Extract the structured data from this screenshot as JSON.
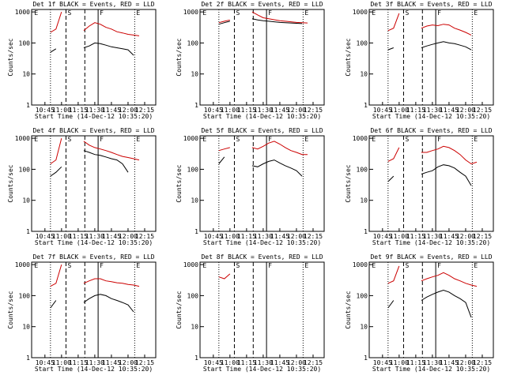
{
  "chart_data": [
    {
      "type": "line",
      "title": "Det 1f BLACK = Events, RED = LLD",
      "xlabel": "Start Time (14-Dec-12 10:35:20)",
      "ylabel": "Counts/sec",
      "log": true,
      "x": [
        "10:50",
        "10:55",
        "11:00",
        "11:05",
        "11:10",
        "11:15",
        "11:20",
        "11:25",
        "11:30",
        "11:35",
        "11:40",
        "11:45",
        "11:50",
        "11:55",
        "12:00",
        "12:05",
        "12:10"
      ],
      "xlim": [
        "10:33",
        "12:25"
      ],
      "xticks": [
        "10:45",
        "11:00",
        "11:15",
        "11:30",
        "11:45",
        "12:00",
        "12:15"
      ],
      "ylim": [
        1,
        1200
      ],
      "yticks": [
        1,
        10,
        100,
        1000
      ],
      "series": [
        {
          "color": "#cc0000",
          "values": [
            220,
            280,
            1000,
            null,
            null,
            null,
            250,
            350,
            450,
            400,
            320,
            280,
            230,
            210,
            190,
            180,
            170
          ]
        },
        {
          "color": "#000000",
          "values": [
            50,
            65,
            null,
            null,
            null,
            null,
            70,
            80,
            100,
            95,
            85,
            75,
            70,
            65,
            60,
            40,
            null
          ]
        }
      ],
      "markers": [
        {
          "x": "10:34",
          "style": "none",
          "label": "E"
        },
        {
          "x": "10:50",
          "style": "dotted"
        },
        {
          "x": "11:04",
          "style": "dashed",
          "label": "S"
        },
        {
          "x": "11:21",
          "style": "dashed"
        },
        {
          "x": "11:33",
          "style": "solid",
          "label": "F"
        },
        {
          "x": "12:06",
          "style": "dotted",
          "label": "E"
        }
      ]
    },
    {
      "type": "line",
      "title": "Det 2f BLACK = Events, RED = LLD",
      "xlabel": "Start Time (14-Dec-12 10:35:20)",
      "ylabel": "Counts/sec",
      "log": true,
      "x": [
        "10:50",
        "10:55",
        "11:00",
        "11:05",
        "11:10",
        "11:15",
        "11:20",
        "11:25",
        "11:30",
        "11:35",
        "11:40",
        "11:45",
        "11:50",
        "11:55",
        "12:00",
        "12:05",
        "12:10"
      ],
      "xlim": [
        "10:33",
        "12:25"
      ],
      "xticks": [
        "10:45",
        "11:00",
        "11:15",
        "11:30",
        "11:45",
        "12:00",
        "12:15"
      ],
      "ylim": [
        1,
        1200
      ],
      "yticks": [
        1,
        10,
        100,
        1000
      ],
      "series": [
        {
          "color": "#cc0000",
          "values": [
            450,
            500,
            550,
            null,
            null,
            null,
            1000,
            800,
            650,
            600,
            560,
            520,
            500,
            480,
            460,
            450,
            440
          ]
        },
        {
          "color": "#000000",
          "values": [
            400,
            450,
            500,
            null,
            null,
            null,
            600,
            550,
            520,
            500,
            480,
            460,
            450,
            440,
            430,
            420,
            null
          ]
        }
      ],
      "markers": [
        {
          "x": "10:34",
          "style": "none",
          "label": "E"
        },
        {
          "x": "10:50",
          "style": "dotted"
        },
        {
          "x": "11:04",
          "style": "dashed",
          "label": "S"
        },
        {
          "x": "11:21",
          "style": "dashed"
        },
        {
          "x": "11:33",
          "style": "solid",
          "label": "F"
        },
        {
          "x": "12:06",
          "style": "dotted",
          "label": "E"
        }
      ]
    },
    {
      "type": "line",
      "title": "Det 3f BLACK = Events, RED = LLD",
      "xlabel": "Start Time (14-Dec-12 10:35:20)",
      "ylabel": "Counts/sec",
      "log": true,
      "x": [
        "10:50",
        "10:55",
        "11:00",
        "11:05",
        "11:10",
        "11:15",
        "11:20",
        "11:25",
        "11:30",
        "11:35",
        "11:40",
        "11:45",
        "11:50",
        "11:55",
        "12:00",
        "12:05",
        "12:10"
      ],
      "xlim": [
        "10:33",
        "12:25"
      ],
      "xticks": [
        "10:45",
        "11:00",
        "11:15",
        "11:30",
        "11:45",
        "12:00",
        "12:15"
      ],
      "ylim": [
        1,
        1200
      ],
      "yticks": [
        1,
        10,
        100,
        1000
      ],
      "series": [
        {
          "color": "#cc0000",
          "values": [
            250,
            300,
            900,
            null,
            null,
            null,
            300,
            350,
            380,
            360,
            400,
            380,
            300,
            260,
            220,
            180,
            null
          ]
        },
        {
          "color": "#000000",
          "values": [
            60,
            70,
            null,
            null,
            null,
            null,
            70,
            80,
            90,
            100,
            110,
            100,
            95,
            85,
            75,
            60,
            null
          ]
        }
      ],
      "markers": [
        {
          "x": "10:34",
          "style": "none",
          "label": "E"
        },
        {
          "x": "10:50",
          "style": "dotted"
        },
        {
          "x": "11:04",
          "style": "dashed",
          "label": "S"
        },
        {
          "x": "11:21",
          "style": "dashed"
        },
        {
          "x": "11:33",
          "style": "solid",
          "label": "F"
        },
        {
          "x": "12:06",
          "style": "dotted",
          "label": "E"
        }
      ]
    },
    {
      "type": "line",
      "title": "Det 4f BLACK = Events, RED = LLD",
      "xlabel": "Start Time (14-Dec-12 10:35:20)",
      "ylabel": "Counts/sec",
      "log": true,
      "x": [
        "10:50",
        "10:55",
        "11:00",
        "11:05",
        "11:10",
        "11:15",
        "11:20",
        "11:25",
        "11:30",
        "11:35",
        "11:40",
        "11:45",
        "11:50",
        "11:55",
        "12:00",
        "12:05",
        "12:10"
      ],
      "xlim": [
        "10:33",
        "12:25"
      ],
      "xticks": [
        "10:45",
        "11:00",
        "11:15",
        "11:30",
        "11:45",
        "12:00",
        "12:15"
      ],
      "ylim": [
        1,
        1200
      ],
      "yticks": [
        1,
        10,
        100,
        1000
      ],
      "series": [
        {
          "color": "#cc0000",
          "values": [
            150,
            200,
            1000,
            null,
            null,
            null,
            800,
            600,
            500,
            450,
            400,
            350,
            300,
            260,
            240,
            220,
            200
          ]
        },
        {
          "color": "#000000",
          "values": [
            60,
            80,
            120,
            null,
            null,
            null,
            400,
            350,
            300,
            280,
            250,
            220,
            200,
            150,
            80,
            null,
            null
          ]
        }
      ],
      "markers": [
        {
          "x": "10:34",
          "style": "none",
          "label": "E"
        },
        {
          "x": "10:50",
          "style": "dotted"
        },
        {
          "x": "11:04",
          "style": "dashed",
          "label": "S"
        },
        {
          "x": "11:21",
          "style": "dashed"
        },
        {
          "x": "11:33",
          "style": "solid",
          "label": "F"
        },
        {
          "x": "12:06",
          "style": "dotted",
          "label": "E"
        }
      ]
    },
    {
      "type": "line",
      "title": "Det 5f BLACK = Events, RED = LLD",
      "xlabel": "Start Time (14-Dec-12 10:35:20)",
      "ylabel": "Counts/sec",
      "log": true,
      "x": [
        "10:50",
        "10:55",
        "11:00",
        "11:05",
        "11:10",
        "11:15",
        "11:20",
        "11:25",
        "11:30",
        "11:35",
        "11:40",
        "11:45",
        "11:50",
        "11:55",
        "12:00",
        "12:05",
        "12:10"
      ],
      "xlim": [
        "10:33",
        "12:25"
      ],
      "xticks": [
        "10:45",
        "11:00",
        "11:15",
        "11:30",
        "11:45",
        "12:00",
        "12:15"
      ],
      "ylim": [
        1,
        1200
      ],
      "yticks": [
        1,
        10,
        100,
        1000
      ],
      "series": [
        {
          "color": "#cc0000",
          "values": [
            400,
            450,
            500,
            null,
            null,
            null,
            500,
            450,
            550,
            700,
            800,
            650,
            500,
            400,
            350,
            300,
            300
          ]
        },
        {
          "color": "#000000",
          "values": [
            150,
            250,
            null,
            null,
            null,
            null,
            130,
            120,
            150,
            180,
            200,
            160,
            130,
            110,
            90,
            60,
            null
          ]
        }
      ],
      "markers": [
        {
          "x": "10:34",
          "style": "none",
          "label": "E"
        },
        {
          "x": "10:50",
          "style": "dotted"
        },
        {
          "x": "11:04",
          "style": "dashed",
          "label": "S"
        },
        {
          "x": "11:21",
          "style": "dashed"
        },
        {
          "x": "11:33",
          "style": "solid",
          "label": "F"
        },
        {
          "x": "12:06",
          "style": "dotted",
          "label": "E"
        }
      ]
    },
    {
      "type": "line",
      "title": "Det 6f BLACK = Events, RED = LLD",
      "xlabel": "Start Time (14-Dec-12 10:35:20)",
      "ylabel": "Counts/sec",
      "log": true,
      "x": [
        "10:50",
        "10:55",
        "11:00",
        "11:05",
        "11:10",
        "11:15",
        "11:20",
        "11:25",
        "11:30",
        "11:35",
        "11:40",
        "11:45",
        "11:50",
        "11:55",
        "12:00",
        "12:05",
        "12:10"
      ],
      "xlim": [
        "10:33",
        "12:25"
      ],
      "xticks": [
        "10:45",
        "11:00",
        "11:15",
        "11:30",
        "11:45",
        "12:00",
        "12:15"
      ],
      "ylim": [
        1,
        1200
      ],
      "yticks": [
        1,
        10,
        100,
        1000
      ],
      "series": [
        {
          "color": "#cc0000",
          "values": [
            180,
            220,
            500,
            null,
            null,
            null,
            350,
            350,
            400,
            450,
            550,
            500,
            400,
            300,
            200,
            150,
            170
          ]
        },
        {
          "color": "#000000",
          "values": [
            40,
            60,
            null,
            null,
            null,
            null,
            70,
            80,
            90,
            120,
            140,
            130,
            110,
            80,
            60,
            30,
            null
          ]
        }
      ],
      "markers": [
        {
          "x": "10:34",
          "style": "none",
          "label": "E"
        },
        {
          "x": "10:50",
          "style": "dotted"
        },
        {
          "x": "11:04",
          "style": "dashed",
          "label": "S"
        },
        {
          "x": "11:21",
          "style": "dashed"
        },
        {
          "x": "11:33",
          "style": "solid",
          "label": "F"
        },
        {
          "x": "12:06",
          "style": "dotted",
          "label": "E"
        }
      ]
    },
    {
      "type": "line",
      "title": "Det 7f BLACK = Events, RED = LLD",
      "xlabel": "Start Time (14-Dec-12 10:35:20)",
      "ylabel": "Counts/sec",
      "log": true,
      "x": [
        "10:50",
        "10:55",
        "11:00",
        "11:05",
        "11:10",
        "11:15",
        "11:20",
        "11:25",
        "11:30",
        "11:35",
        "11:40",
        "11:45",
        "11:50",
        "11:55",
        "12:00",
        "12:05",
        "12:10"
      ],
      "xlim": [
        "10:33",
        "12:25"
      ],
      "xticks": [
        "10:45",
        "11:00",
        "11:15",
        "11:30",
        "11:45",
        "12:00",
        "12:15"
      ],
      "ylim": [
        1,
        1200
      ],
      "yticks": [
        1,
        10,
        100,
        1000
      ],
      "series": [
        {
          "color": "#cc0000",
          "values": [
            200,
            250,
            1000,
            null,
            null,
            null,
            250,
            300,
            350,
            350,
            300,
            280,
            260,
            250,
            230,
            220,
            200
          ]
        },
        {
          "color": "#000000",
          "values": [
            40,
            70,
            null,
            null,
            null,
            null,
            60,
            80,
            100,
            110,
            100,
            80,
            70,
            60,
            50,
            30,
            null
          ]
        }
      ],
      "markers": [
        {
          "x": "10:34",
          "style": "none",
          "label": "E"
        },
        {
          "x": "10:50",
          "style": "dotted"
        },
        {
          "x": "11:04",
          "style": "dashed",
          "label": "S"
        },
        {
          "x": "11:21",
          "style": "dashed"
        },
        {
          "x": "11:33",
          "style": "solid",
          "label": "F"
        },
        {
          "x": "12:06",
          "style": "dotted",
          "label": "E"
        }
      ]
    },
    {
      "type": "line",
      "title": "Det 8f BLACK = Events, RED = LLD",
      "xlabel": "Start Time (14-Dec-12 10:35:20)",
      "ylabel": "Counts/sec",
      "log": true,
      "x": [
        "10:50",
        "10:55",
        "11:00",
        "11:05",
        "11:10",
        "11:15",
        "11:20",
        "11:25",
        "11:30",
        "11:35",
        "11:40",
        "11:45",
        "11:50",
        "11:55",
        "12:00",
        "12:05",
        "12:10"
      ],
      "xlim": [
        "10:33",
        "12:25"
      ],
      "xticks": [
        "10:45",
        "11:00",
        "11:15",
        "11:30",
        "11:45",
        "12:00",
        "12:15"
      ],
      "ylim": [
        1,
        1200
      ],
      "yticks": [
        1,
        10,
        100,
        1000
      ],
      "series": [
        {
          "color": "#cc0000",
          "values": [
            400,
            350,
            500,
            null,
            null,
            null,
            null,
            null,
            null,
            null,
            null,
            null,
            null,
            null,
            null,
            null,
            null
          ]
        }
      ],
      "markers": [
        {
          "x": "10:34",
          "style": "none",
          "label": "E"
        },
        {
          "x": "10:50",
          "style": "dotted"
        },
        {
          "x": "11:04",
          "style": "dashed",
          "label": "S"
        },
        {
          "x": "11:21",
          "style": "dashed"
        },
        {
          "x": "11:33",
          "style": "solid",
          "label": "F"
        },
        {
          "x": "12:06",
          "style": "dotted",
          "label": "E"
        }
      ]
    },
    {
      "type": "line",
      "title": "Det 9f BLACK = Events, RED = LLD",
      "xlabel": "Start Time (14-Dec-12 10:35:20)",
      "ylabel": "Counts/sec",
      "log": true,
      "x": [
        "10:50",
        "10:55",
        "11:00",
        "11:05",
        "11:10",
        "11:15",
        "11:20",
        "11:25",
        "11:30",
        "11:35",
        "11:40",
        "11:45",
        "11:50",
        "11:55",
        "12:00",
        "12:05",
        "12:10"
      ],
      "xlim": [
        "10:33",
        "12:25"
      ],
      "xticks": [
        "10:45",
        "11:00",
        "11:15",
        "11:30",
        "11:45",
        "12:00",
        "12:15"
      ],
      "ylim": [
        1,
        1200
      ],
      "yticks": [
        1,
        10,
        100,
        1000
      ],
      "series": [
        {
          "color": "#cc0000",
          "values": [
            250,
            300,
            900,
            null,
            null,
            null,
            300,
            350,
            400,
            450,
            550,
            450,
            350,
            300,
            250,
            220,
            200
          ]
        },
        {
          "color": "#000000",
          "values": [
            40,
            70,
            null,
            null,
            null,
            null,
            70,
            90,
            110,
            130,
            150,
            130,
            100,
            80,
            60,
            20,
            null
          ]
        }
      ],
      "markers": [
        {
          "x": "10:34",
          "style": "none",
          "label": "E"
        },
        {
          "x": "10:50",
          "style": "dotted"
        },
        {
          "x": "11:04",
          "style": "dashed",
          "label": "S"
        },
        {
          "x": "11:21",
          "style": "dashed"
        },
        {
          "x": "11:33",
          "style": "solid",
          "label": "F"
        },
        {
          "x": "12:06",
          "style": "dotted",
          "label": "E"
        }
      ]
    }
  ]
}
